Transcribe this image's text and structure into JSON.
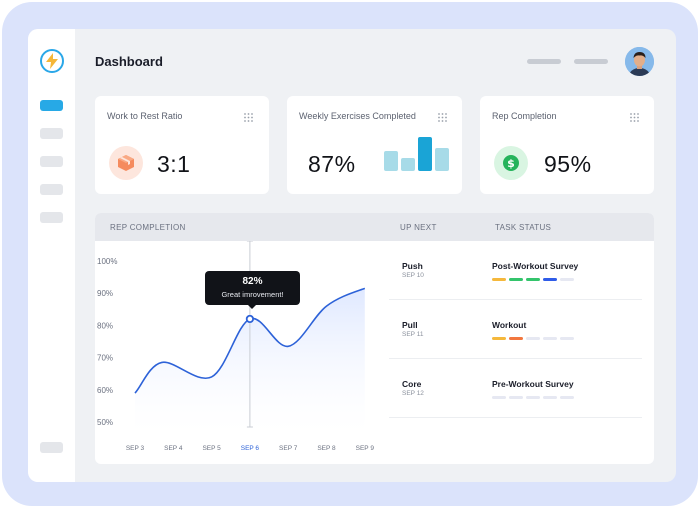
{
  "header": {
    "title": "Dashboard"
  },
  "cards": [
    {
      "title": "Work to Rest Ratio",
      "value": "3:1",
      "icon": "package-icon"
    },
    {
      "title": "Weekly Exercises Completed",
      "value": "87%",
      "icon": "bar-chart-icon"
    },
    {
      "title": "Rep Completion",
      "value": "95%",
      "icon": "dollar-icon"
    }
  ],
  "panel": {
    "chart_header": "REP COMPLETION",
    "up_next_header": "UP NEXT",
    "task_status_header": "TASK STATUS",
    "tooltip": {
      "value": "82%",
      "note": "Great imrovement!"
    },
    "tasks": [
      {
        "name": "Push",
        "date": "SEP 10",
        "status": "Post-Workout Survey",
        "segments": [
          "#f5b83c",
          "#34c46c",
          "#34c46c",
          "#2f5ce8",
          "#e6e8f2"
        ]
      },
      {
        "name": "Pull",
        "date": "SEP 11",
        "status": "Workout",
        "segments": [
          "#f5b83c",
          "#f2773f",
          "#e6e8f2",
          "#e6e8f2",
          "#e6e8f2"
        ]
      },
      {
        "name": "Core",
        "date": "SEP 12",
        "status": "Pre-Workout Survey",
        "segments": [
          "#e6e8f2",
          "#e6e8f2",
          "#e6e8f2",
          "#e6e8f2",
          "#e6e8f2"
        ]
      }
    ]
  },
  "chart_data": {
    "type": "area",
    "title": "REP COMPLETION",
    "categories": [
      "SEP 3",
      "SEP 4",
      "SEP 5",
      "SEP 6",
      "SEP 7",
      "SEP 8",
      "SEP 9"
    ],
    "y_ticks": [
      "100%",
      "90%",
      "80%",
      "70%",
      "60%",
      "50%"
    ],
    "ylim": [
      50,
      100
    ],
    "points": [
      {
        "x": "SEP 3",
        "y": 59
      },
      {
        "x": "SEP 3.7",
        "y": 68.5
      },
      {
        "x": "SEP 5",
        "y": 64
      },
      {
        "x": "SEP 6",
        "y": 82
      },
      {
        "x": "SEP 7",
        "y": 73.5
      },
      {
        "x": "SEP 8",
        "y": 86
      },
      {
        "x": "SEP 9",
        "y": 91.5
      }
    ],
    "highlight": {
      "x": "SEP 6",
      "y": 82
    },
    "grid": false,
    "colors": {
      "line": "#2d62d8",
      "fill": "#e8efff",
      "active_tick": "#2d62d8"
    }
  }
}
